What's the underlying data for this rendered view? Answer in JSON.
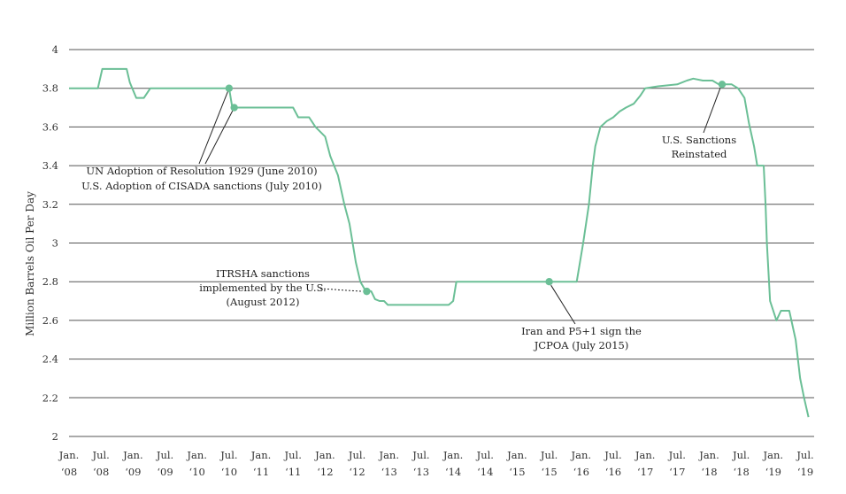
{
  "chart_data": {
    "type": "line",
    "title": "",
    "xlabel": "",
    "ylabel": "Million Barrels Oil Per Day",
    "ylim": [
      2,
      4
    ],
    "yticks": [
      "2",
      "2.2",
      "2.4",
      "2.6",
      "2.8",
      "3",
      "3.2",
      "3.4",
      "3.6",
      "3.8",
      "4"
    ],
    "grid": true,
    "xlim": [
      2008.0,
      2019.5
    ],
    "xticks": [
      {
        "x": 2008.0,
        "line1": "Jan.",
        "line2": "‘08"
      },
      {
        "x": 2008.5,
        "line1": "Jul.",
        "line2": "‘08"
      },
      {
        "x": 2009.0,
        "line1": "Jan.",
        "line2": "‘09"
      },
      {
        "x": 2009.5,
        "line1": "Jul.",
        "line2": "‘09"
      },
      {
        "x": 2010.0,
        "line1": "Jan.",
        "line2": "‘10"
      },
      {
        "x": 2010.5,
        "line1": "Jul.",
        "line2": "‘10"
      },
      {
        "x": 2011.0,
        "line1": "Jan.",
        "line2": "‘11"
      },
      {
        "x": 2011.5,
        "line1": "Jul.",
        "line2": "‘11"
      },
      {
        "x": 2012.0,
        "line1": "Jan.",
        "line2": "‘12"
      },
      {
        "x": 2012.5,
        "line1": "Jul.",
        "line2": "‘12"
      },
      {
        "x": 2013.0,
        "line1": "Jan.",
        "line2": "‘13"
      },
      {
        "x": 2013.5,
        "line1": "Jul.",
        "line2": "‘13"
      },
      {
        "x": 2014.0,
        "line1": "Jan.",
        "line2": "‘14"
      },
      {
        "x": 2014.5,
        "line1": "Jul.",
        "line2": "‘14"
      },
      {
        "x": 2015.0,
        "line1": "Jan.",
        "line2": "‘15"
      },
      {
        "x": 2015.5,
        "line1": "Jul.",
        "line2": "‘15"
      },
      {
        "x": 2016.0,
        "line1": "Jan.",
        "line2": "‘16"
      },
      {
        "x": 2016.5,
        "line1": "Jul.",
        "line2": "‘16"
      },
      {
        "x": 2017.0,
        "line1": "Jan.",
        "line2": "‘17"
      },
      {
        "x": 2017.5,
        "line1": "Jul.",
        "line2": "‘17"
      },
      {
        "x": 2018.0,
        "line1": "Jan.",
        "line2": "‘18"
      },
      {
        "x": 2018.5,
        "line1": "Jul.",
        "line2": "‘18"
      },
      {
        "x": 2019.0,
        "line1": "Jan.",
        "line2": "‘19"
      },
      {
        "x": 2019.5,
        "line1": "Jul.",
        "line2": "‘19"
      }
    ],
    "series": [
      {
        "color": "#6bbf96",
        "points": [
          [
            2008.0,
            3.8
          ],
          [
            2008.45,
            3.8
          ],
          [
            2008.52,
            3.9
          ],
          [
            2008.9,
            3.9
          ],
          [
            2008.95,
            3.83
          ],
          [
            2009.05,
            3.75
          ],
          [
            2009.17,
            3.75
          ],
          [
            2009.27,
            3.8
          ],
          [
            2010.5,
            3.8
          ],
          [
            2010.55,
            3.7
          ],
          [
            2011.5,
            3.7
          ],
          [
            2011.58,
            3.65
          ],
          [
            2011.75,
            3.65
          ],
          [
            2011.85,
            3.6
          ],
          [
            2012.0,
            3.55
          ],
          [
            2012.08,
            3.45
          ],
          [
            2012.2,
            3.35
          ],
          [
            2012.3,
            3.2
          ],
          [
            2012.38,
            3.1
          ],
          [
            2012.48,
            2.9
          ],
          [
            2012.55,
            2.8
          ],
          [
            2012.62,
            2.76
          ],
          [
            2012.72,
            2.75
          ],
          [
            2012.78,
            2.71
          ],
          [
            2012.85,
            2.7
          ],
          [
            2012.92,
            2.7
          ],
          [
            2012.98,
            2.68
          ],
          [
            2013.93,
            2.68
          ],
          [
            2014.0,
            2.7
          ],
          [
            2014.05,
            2.8
          ],
          [
            2015.93,
            2.8
          ],
          [
            2016.03,
            3.0
          ],
          [
            2016.12,
            3.2
          ],
          [
            2016.18,
            3.4
          ],
          [
            2016.22,
            3.5
          ],
          [
            2016.3,
            3.6
          ],
          [
            2016.4,
            3.63
          ],
          [
            2016.5,
            3.65
          ],
          [
            2016.6,
            3.68
          ],
          [
            2016.7,
            3.7
          ],
          [
            2016.82,
            3.72
          ],
          [
            2016.92,
            3.76
          ],
          [
            2017.0,
            3.8
          ],
          [
            2017.2,
            3.81
          ],
          [
            2017.5,
            3.82
          ],
          [
            2017.65,
            3.84
          ],
          [
            2017.75,
            3.85
          ],
          [
            2017.9,
            3.84
          ],
          [
            2018.05,
            3.84
          ],
          [
            2018.15,
            3.82
          ],
          [
            2018.35,
            3.82
          ],
          [
            2018.45,
            3.8
          ],
          [
            2018.55,
            3.75
          ],
          [
            2018.62,
            3.62
          ],
          [
            2018.7,
            3.5
          ],
          [
            2018.75,
            3.4
          ],
          [
            2018.85,
            3.4
          ],
          [
            2018.88,
            3.2
          ],
          [
            2018.9,
            3.0
          ],
          [
            2018.95,
            2.7
          ],
          [
            2019.05,
            2.6
          ],
          [
            2019.12,
            2.65
          ],
          [
            2019.25,
            2.65
          ],
          [
            2019.35,
            2.5
          ],
          [
            2019.42,
            2.3
          ],
          [
            2019.48,
            2.2
          ],
          [
            2019.55,
            2.1
          ]
        ]
      }
    ],
    "markers": [
      {
        "x": 2010.5,
        "y": 3.8
      },
      {
        "x": 2010.58,
        "y": 3.7
      },
      {
        "x": 2012.65,
        "y": 2.75
      },
      {
        "x": 2015.5,
        "y": 2.8
      },
      {
        "x": 2018.2,
        "y": 3.82
      }
    ],
    "annotations": [
      {
        "lines": [
          "UN Adoption of Resolution 1929 (June 2010)",
          "U.S. Adoption of CISADA sanctions (July 2010)"
        ]
      },
      {
        "lines": [
          "ITRSHA sanctions",
          "implemented by the U.S.",
          "(August 2012)"
        ]
      },
      {
        "lines": [
          "Iran and P5+1 sign the",
          "JCPOA (July 2015)"
        ]
      },
      {
        "lines": [
          "U.S. Sanctions",
          "Reinstated"
        ]
      }
    ]
  }
}
